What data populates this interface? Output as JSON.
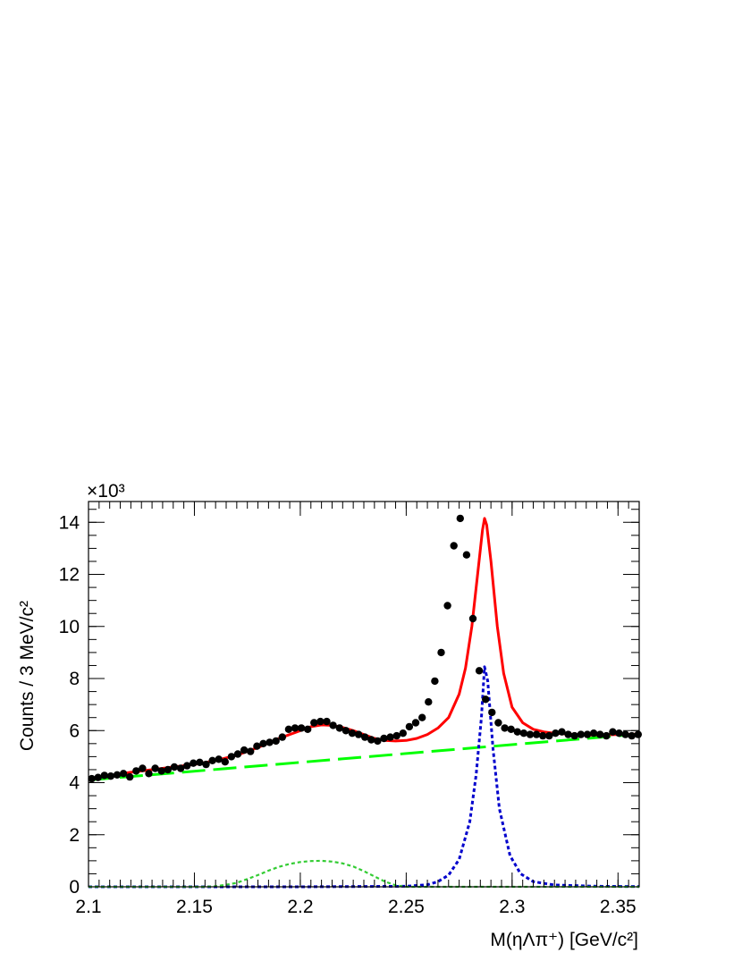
{
  "chart_data": {
    "type": "line",
    "xlabel": "M(ηΛπ⁺) [GeV/c²]",
    "ylabel": "Counts / 3 MeV/c²",
    "y_multiplier": "×10³",
    "xlim": [
      2.1,
      2.36
    ],
    "ylim": [
      0,
      14.8
    ],
    "x_ticks": [
      2.1,
      2.15,
      2.2,
      2.25,
      2.3,
      2.35
    ],
    "x_tick_labels": [
      "2.1",
      "2.15",
      "2.2",
      "2.25",
      "2.3",
      "2.35"
    ],
    "y_ticks": [
      0,
      2,
      4,
      6,
      8,
      10,
      12,
      14
    ],
    "y_tick_labels": [
      "0",
      "2",
      "4",
      "6",
      "8",
      "10",
      "12",
      "14"
    ],
    "grid": false,
    "legend": "none",
    "data_points": {
      "x": [
        2.1015,
        2.1045,
        2.1075,
        2.1105,
        2.1135,
        2.1165,
        2.1195,
        2.1225,
        2.1255,
        2.1285,
        2.1315,
        2.1345,
        2.1375,
        2.1405,
        2.1435,
        2.1465,
        2.1495,
        2.1525,
        2.1555,
        2.1585,
        2.1615,
        2.1645,
        2.1675,
        2.1705,
        2.1735,
        2.1765,
        2.1795,
        2.1825,
        2.1855,
        2.1885,
        2.1915,
        2.1945,
        2.1975,
        2.2005,
        2.2035,
        2.2065,
        2.2095,
        2.2125,
        2.2155,
        2.2185,
        2.2215,
        2.2245,
        2.2275,
        2.2305,
        2.2335,
        2.2365,
        2.2395,
        2.2425,
        2.2455,
        2.2485,
        2.2515,
        2.2545,
        2.2575,
        2.2605,
        2.2635,
        2.2665,
        2.2695,
        2.2725,
        2.2755,
        2.2785,
        2.2815,
        2.2845,
        2.2875,
        2.2905,
        2.2935,
        2.2965,
        2.2995,
        2.3025,
        2.3055,
        2.3085,
        2.3115,
        2.3145,
        2.3175,
        2.3205,
        2.3235,
        2.3265,
        2.3295,
        2.3325,
        2.3355,
        2.3385,
        2.3415,
        2.3445,
        2.3475,
        2.3505,
        2.3535,
        2.3565,
        2.3595
      ],
      "y": [
        4.15,
        4.2,
        4.28,
        4.25,
        4.3,
        4.35,
        4.22,
        4.45,
        4.55,
        4.35,
        4.55,
        4.45,
        4.5,
        4.6,
        4.55,
        4.65,
        4.75,
        4.78,
        4.7,
        4.85,
        4.9,
        4.8,
        5.0,
        5.1,
        5.25,
        5.2,
        5.4,
        5.5,
        5.55,
        5.6,
        5.75,
        6.05,
        6.1,
        6.1,
        6.05,
        6.3,
        6.35,
        6.35,
        6.2,
        6.1,
        6.0,
        5.9,
        5.85,
        5.75,
        5.65,
        5.6,
        5.7,
        5.75,
        5.8,
        5.9,
        6.15,
        6.3,
        6.5,
        7.1,
        7.9,
        9.0,
        10.8,
        13.1,
        14.15,
        12.75,
        10.3,
        8.3,
        7.2,
        6.7,
        6.3,
        6.1,
        6.05,
        5.95,
        5.9,
        5.85,
        5.85,
        5.8,
        5.8,
        5.9,
        5.95,
        5.85,
        5.8,
        5.85,
        5.85,
        5.9,
        5.85,
        5.8,
        5.95,
        5.9,
        5.85,
        5.8,
        5.85
      ],
      "color": "#000000"
    },
    "series": [
      {
        "x": [
          2.1,
          2.11,
          2.12,
          2.13,
          2.14,
          2.15,
          2.16,
          2.17,
          2.18,
          2.19,
          2.2,
          2.205,
          2.21,
          2.215,
          2.22,
          2.225,
          2.23,
          2.235,
          2.24,
          2.245,
          2.25,
          2.255,
          2.26,
          2.265,
          2.27,
          2.275,
          2.278,
          2.281,
          2.284,
          2.286,
          2.287,
          2.288,
          2.29,
          2.293,
          2.296,
          2.3,
          2.305,
          2.31,
          2.315,
          2.32,
          2.33,
          2.34,
          2.35,
          2.36
        ],
        "y": [
          4.1,
          4.27,
          4.4,
          4.5,
          4.6,
          4.7,
          4.85,
          5.05,
          5.35,
          5.7,
          6.0,
          6.15,
          6.22,
          6.2,
          6.12,
          6.0,
          5.85,
          5.7,
          5.62,
          5.6,
          5.62,
          5.7,
          5.85,
          6.1,
          6.5,
          7.4,
          8.4,
          10.0,
          12.2,
          13.7,
          14.15,
          13.9,
          12.5,
          10.0,
          8.2,
          6.9,
          6.3,
          6.05,
          5.95,
          5.9,
          5.85,
          5.82,
          5.85,
          5.87
        ],
        "style": "solid",
        "color": "#ff0000"
      },
      {
        "x": [
          2.1,
          2.36
        ],
        "y": [
          4.1,
          5.87
        ],
        "style": "dashed",
        "color": "#00ff00"
      },
      {
        "x": [
          2.1,
          2.2,
          2.25,
          2.26,
          2.265,
          2.27,
          2.275,
          2.28,
          2.283,
          2.2855,
          2.287,
          2.2885,
          2.291,
          2.294,
          2.299,
          2.304,
          2.31,
          2.32,
          2.34,
          2.36
        ],
        "y": [
          0,
          0,
          0.02,
          0.08,
          0.2,
          0.45,
          1.05,
          2.5,
          4.3,
          6.5,
          8.45,
          7.9,
          5.3,
          3.0,
          1.2,
          0.5,
          0.2,
          0.07,
          0.02,
          0.01
        ],
        "style": "dotted",
        "color": "#0000cc"
      },
      {
        "x": [
          2.1,
          2.155,
          2.16,
          2.165,
          2.17,
          2.175,
          2.18,
          2.185,
          2.19,
          2.195,
          2.2,
          2.205,
          2.21,
          2.215,
          2.22,
          2.225,
          2.23,
          2.235,
          2.24,
          2.245,
          2.25,
          2.36
        ],
        "y": [
          0,
          0,
          0.02,
          0.08,
          0.15,
          0.3,
          0.45,
          0.62,
          0.77,
          0.88,
          0.95,
          0.99,
          1.0,
          0.97,
          0.9,
          0.78,
          0.6,
          0.4,
          0.2,
          0.06,
          0,
          0
        ],
        "style": "dotted",
        "color": "#33cc33"
      }
    ]
  }
}
